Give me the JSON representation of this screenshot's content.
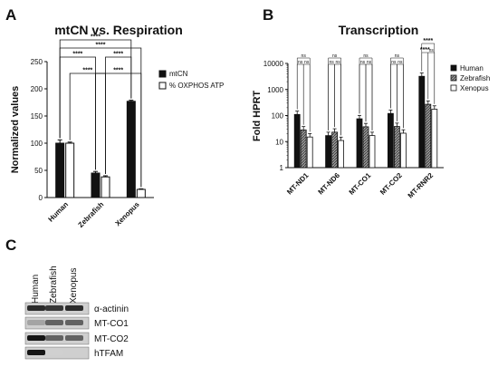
{
  "panel_letters": [
    "A",
    "B",
    "C"
  ],
  "chart_data": [
    {
      "type": "bar",
      "title": "mtCN vs. Respiration",
      "ylabel": "Normalized values",
      "xlabel": "",
      "categories": [
        "Human",
        "Zebrafish",
        "Xenopus"
      ],
      "ylim": [
        0,
        250
      ],
      "yticks": [
        0,
        50,
        100,
        150,
        200,
        250
      ],
      "grid": false,
      "legend_position": "right",
      "series": [
        {
          "name": "mtCN",
          "values": [
            100,
            45,
            177
          ],
          "errors": [
            6,
            3,
            2
          ],
          "color": "#111111"
        },
        {
          "name": "% OXPHOS ATP",
          "values": [
            100,
            38,
            15
          ],
          "errors": [
            2,
            2,
            1
          ],
          "color": "#ffffff"
        }
      ],
      "significance": [
        {
          "label": "****",
          "from": "Human mtCN",
          "to": "Xenopus mtCN"
        },
        {
          "label": "****",
          "from": "Human mtCN",
          "to": "Xenopus % OXPHOS ATP"
        },
        {
          "label": "****",
          "from": "Human mtCN",
          "to": "Zebrafish mtCN"
        },
        {
          "label": "****",
          "from": "Zebrafish % OXPHOS ATP",
          "to": "Xenopus mtCN"
        },
        {
          "label": "****",
          "from": "Human % OXPHOS ATP",
          "to": "Zebrafish % OXPHOS ATP"
        },
        {
          "label": "****",
          "from": "Zebrafish mtCN",
          "to": "Xenopus % OXPHOS ATP"
        }
      ]
    },
    {
      "type": "bar",
      "title": "Transcription",
      "ylabel": "Fold HPRT",
      "xlabel": "",
      "yscale": "log",
      "categories": [
        "MT-ND1",
        "MT-ND6",
        "MT-CO1",
        "MT-CO2",
        "MT-RNR2"
      ],
      "ylim": [
        1,
        10000
      ],
      "yticks": [
        "1",
        "10",
        "100",
        "1000",
        "10000"
      ],
      "grid": false,
      "legend_position": "right",
      "series": [
        {
          "name": "Human",
          "values": [
            110,
            17,
            75,
            120,
            3200
          ],
          "color": "#111111",
          "fill": "solid"
        },
        {
          "name": "Zebrafish",
          "values": [
            28,
            23,
            37,
            38,
            270
          ],
          "color": "#888888",
          "fill": "hatched"
        },
        {
          "name": "Xenopus",
          "values": [
            15,
            11,
            17,
            21,
            175
          ],
          "color": "#ffffff",
          "fill": "white"
        }
      ],
      "significance": {
        "MT-ND1": [
          "ns",
          "ns",
          "ns"
        ],
        "MT-ND6": [
          "ns",
          "ns",
          "ns"
        ],
        "MT-CO1": [
          "ns",
          "ns",
          "ns"
        ],
        "MT-CO2": [
          "ns",
          "ns",
          "ns"
        ],
        "MT-RNR2": [
          "****",
          "****",
          "ns"
        ]
      }
    }
  ],
  "blot": {
    "lanes": [
      "Human",
      "Zebrafish",
      "Xenopus"
    ],
    "rows": [
      {
        "label": "α-actinin",
        "intensity": [
          0.85,
          0.8,
          0.85
        ]
      },
      {
        "label": "MT-CO1",
        "intensity": [
          0.3,
          0.6,
          0.6
        ]
      },
      {
        "label": "MT-CO2",
        "intensity": [
          0.95,
          0.6,
          0.6
        ]
      },
      {
        "label": "hTFAM",
        "intensity": [
          0.95,
          0.1,
          0.0
        ]
      }
    ]
  }
}
